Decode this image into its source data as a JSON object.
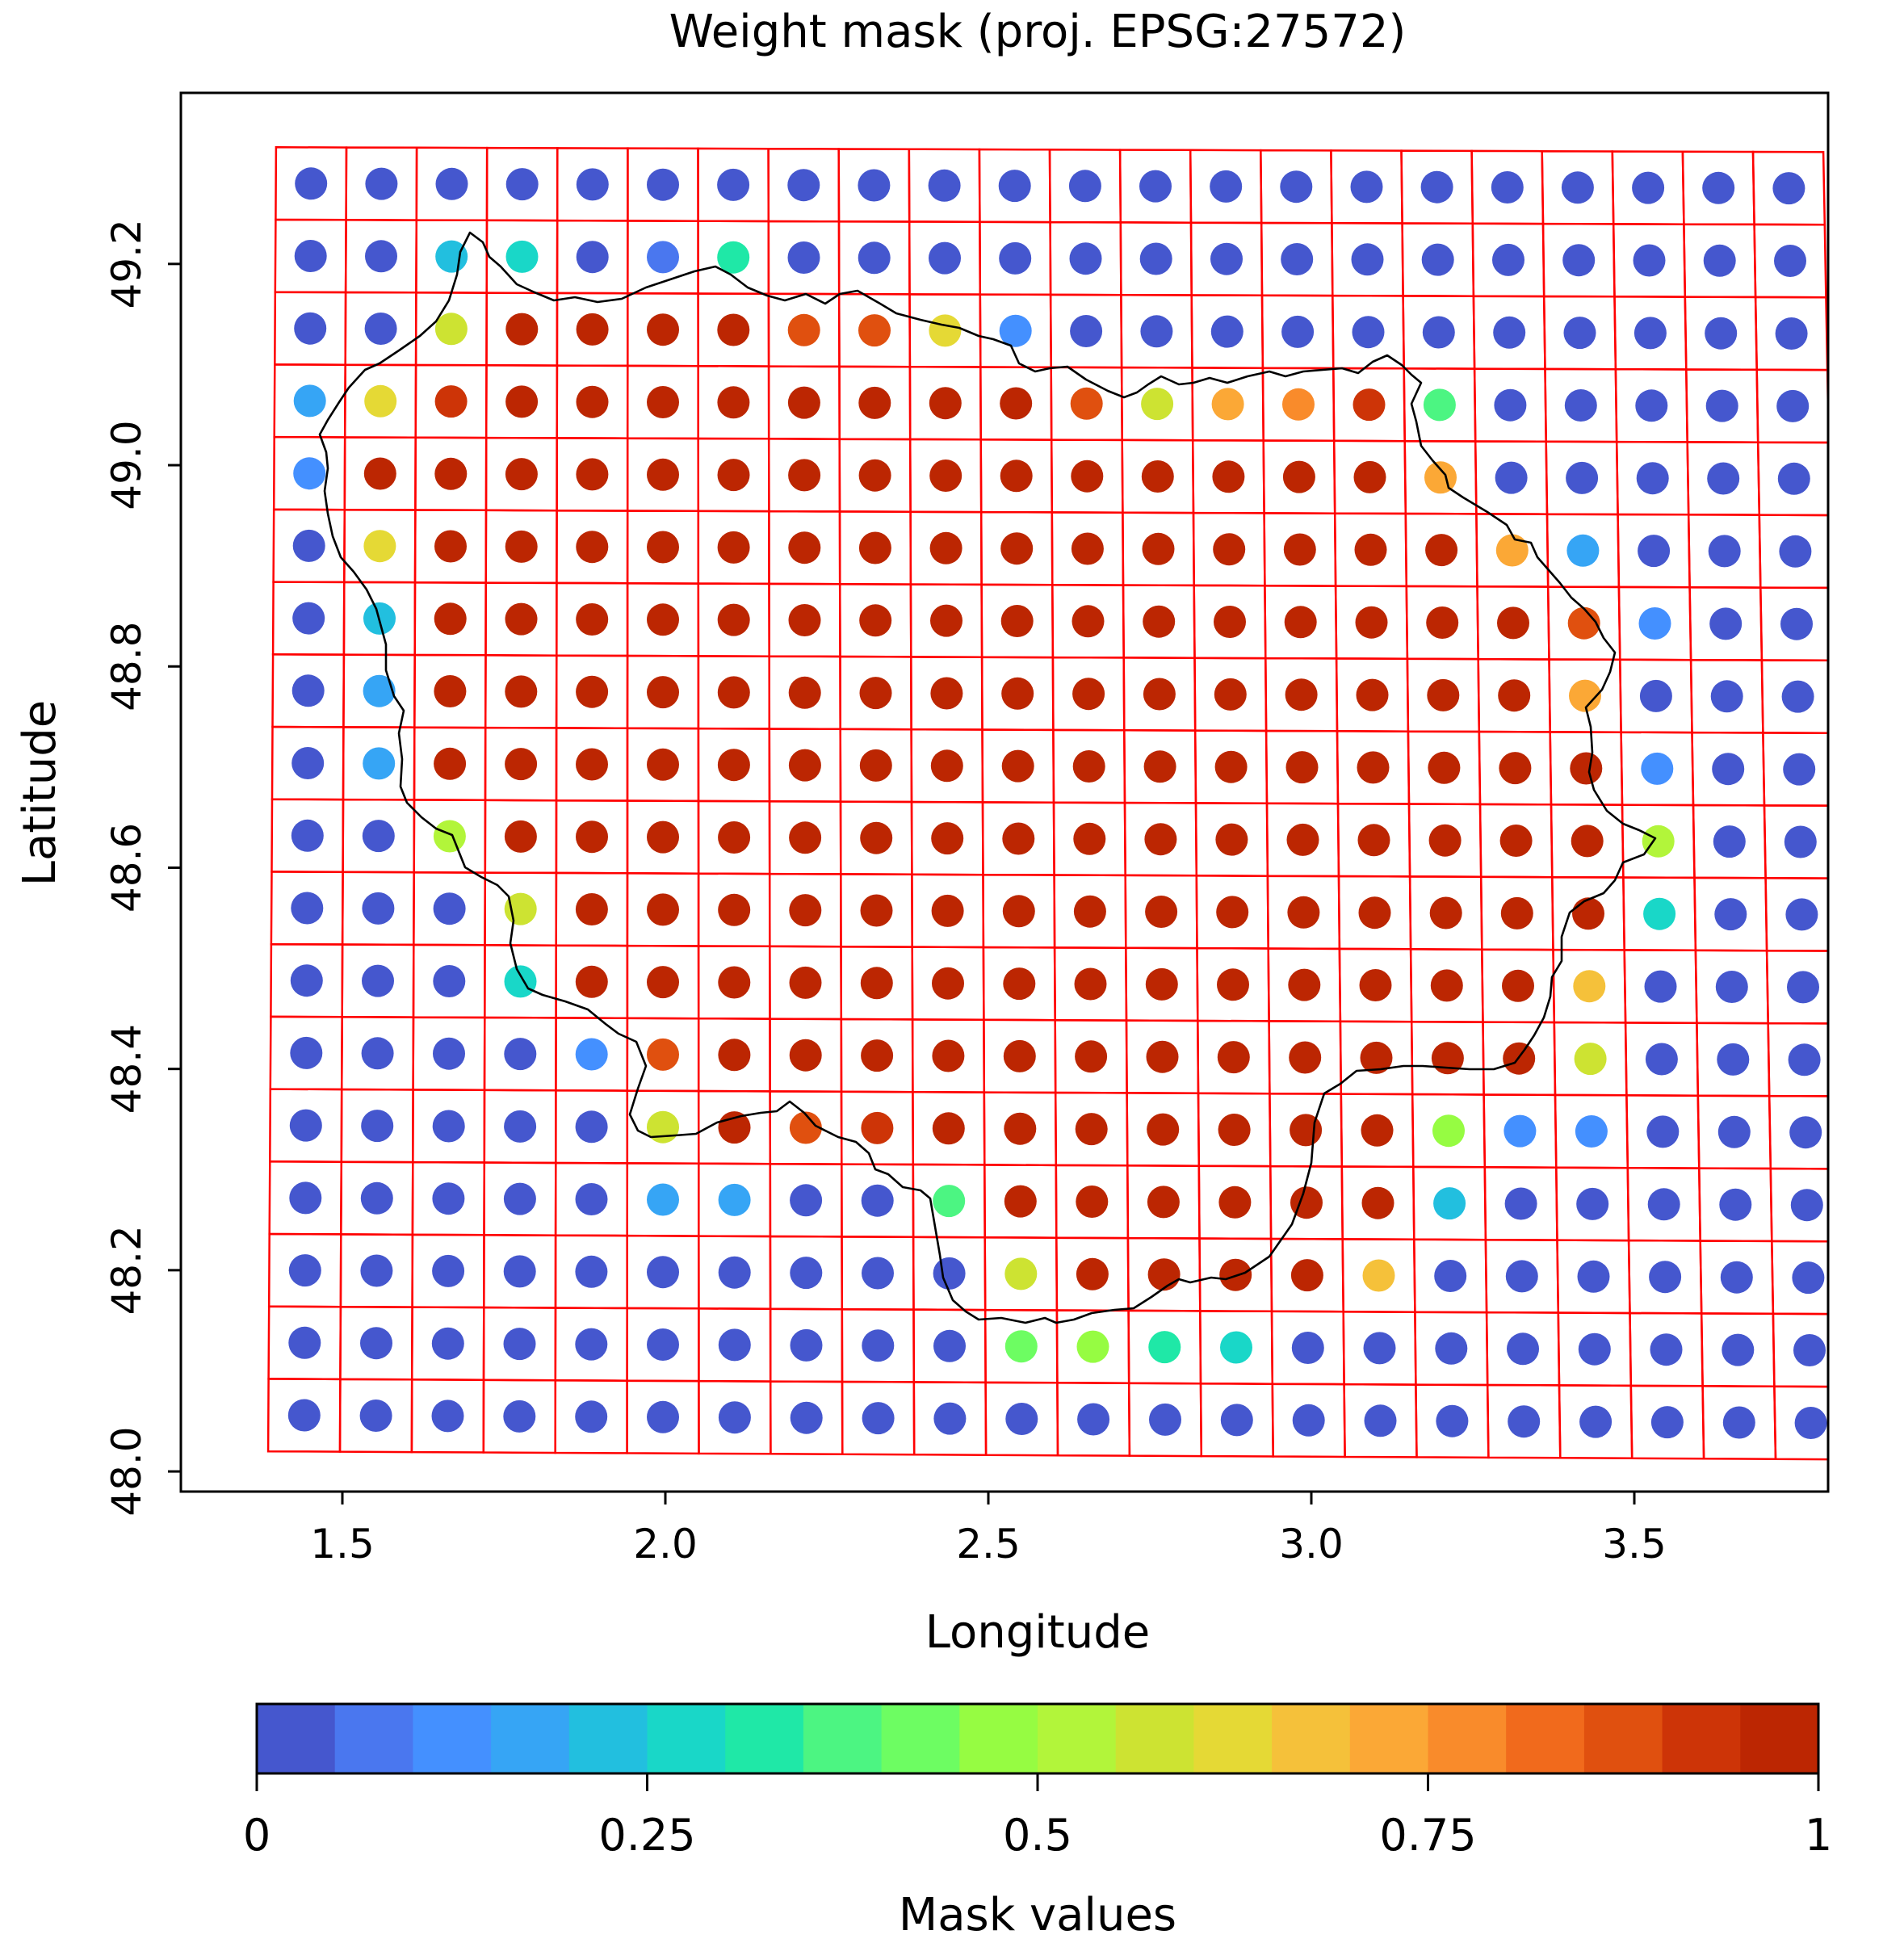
{
  "chart_data": {
    "type": "heatmap",
    "title": "Weight mask (proj. EPSG:27572)",
    "xlabel": "Longitude",
    "ylabel": "Latitude",
    "xlim": [
      1.25,
      3.8
    ],
    "ylim": [
      47.98,
      49.37
    ],
    "xticks": [
      "1.5",
      "2.0",
      "2.5",
      "3.0",
      "3.5"
    ],
    "xtick_values": [
      1.5,
      2.0,
      2.5,
      3.0,
      3.5
    ],
    "yticks": [
      "48.0",
      "48.2",
      "48.4",
      "48.6",
      "48.8",
      "49.0",
      "49.2"
    ],
    "ytick_values": [
      48.0,
      48.2,
      48.4,
      48.6,
      48.8,
      49.0,
      49.2
    ],
    "grid_columns": 22,
    "grid_rows": 18,
    "lon_first": 1.44,
    "lon_step": 0.11,
    "lat_first": 49.28,
    "lat_step": -0.072,
    "mask_values": [
      [
        0,
        0,
        0,
        0,
        0,
        0,
        0,
        0,
        0,
        0,
        0,
        0,
        0,
        0,
        0,
        0,
        0,
        0,
        0,
        0,
        0,
        0
      ],
      [
        0,
        0,
        0.22,
        0.28,
        0,
        0.08,
        0.32,
        0,
        0,
        0,
        0,
        0,
        0,
        0,
        0,
        0,
        0,
        0,
        0,
        0,
        0,
        0
      ],
      [
        0,
        0,
        0.55,
        0.97,
        0.97,
        0.97,
        0.97,
        0.88,
        0.85,
        0.62,
        0.12,
        0,
        0,
        0,
        0,
        0,
        0,
        0,
        0,
        0,
        0,
        0
      ],
      [
        0.15,
        0.62,
        0.92,
        0.97,
        0.97,
        0.97,
        0.97,
        0.97,
        0.97,
        0.97,
        0.97,
        0.85,
        0.58,
        0.72,
        0.78,
        0.92,
        0.38,
        0,
        0,
        0,
        0,
        0
      ],
      [
        0.12,
        0.97,
        0.97,
        0.97,
        0.97,
        0.97,
        0.97,
        0.97,
        0.97,
        0.97,
        0.97,
        0.97,
        0.97,
        0.97,
        0.97,
        0.97,
        0.73,
        0,
        0,
        0,
        0,
        0
      ],
      [
        0,
        0.63,
        0.97,
        0.97,
        0.97,
        0.97,
        0.97,
        0.97,
        0.97,
        0.97,
        0.97,
        0.97,
        0.97,
        0.97,
        0.97,
        0.97,
        0.97,
        0.72,
        0.15,
        0,
        0,
        0
      ],
      [
        0,
        0.22,
        0.97,
        0.97,
        0.97,
        0.97,
        0.97,
        0.97,
        0.97,
        0.97,
        0.97,
        0.97,
        0.97,
        0.97,
        0.97,
        0.97,
        0.97,
        0.97,
        0.85,
        0.12,
        0,
        0
      ],
      [
        0,
        0.18,
        0.97,
        0.97,
        0.97,
        0.97,
        0.97,
        0.97,
        0.97,
        0.97,
        0.97,
        0.97,
        0.97,
        0.97,
        0.97,
        0.97,
        0.97,
        0.97,
        0.72,
        0,
        0,
        0
      ],
      [
        0,
        0.15,
        0.97,
        0.97,
        0.97,
        0.97,
        0.97,
        0.97,
        0.97,
        0.97,
        0.97,
        0.97,
        0.97,
        0.97,
        0.97,
        0.97,
        0.97,
        0.97,
        0.97,
        0.12,
        0,
        0
      ],
      [
        0,
        0,
        0.53,
        0.97,
        0.97,
        0.97,
        0.97,
        0.97,
        0.97,
        0.97,
        0.97,
        0.97,
        0.97,
        0.97,
        0.97,
        0.97,
        0.97,
        0.97,
        0.97,
        0.53,
        0,
        0
      ],
      [
        0,
        0,
        0,
        0.58,
        0.97,
        0.97,
        0.97,
        0.97,
        0.97,
        0.97,
        0.97,
        0.97,
        0.97,
        0.97,
        0.97,
        0.97,
        0.97,
        0.97,
        0.97,
        0.28,
        0,
        0
      ],
      [
        0,
        0,
        0,
        0.28,
        0.97,
        0.97,
        0.97,
        0.97,
        0.97,
        0.97,
        0.97,
        0.97,
        0.97,
        0.97,
        0.97,
        0.97,
        0.97,
        0.97,
        0.68,
        0,
        0,
        0
      ],
      [
        0,
        0,
        0,
        0,
        0.12,
        0.85,
        0.97,
        0.97,
        0.97,
        0.97,
        0.97,
        0.97,
        0.97,
        0.97,
        0.97,
        0.97,
        0.97,
        0.97,
        0.55,
        0,
        0,
        0
      ],
      [
        0,
        0,
        0,
        0,
        0,
        0.57,
        0.97,
        0.85,
        0.92,
        0.97,
        0.97,
        0.97,
        0.97,
        0.97,
        0.97,
        0.97,
        0.48,
        0.12,
        0.12,
        0,
        0,
        0
      ],
      [
        0,
        0,
        0,
        0,
        0,
        0.18,
        0.15,
        0,
        0,
        0.38,
        0.97,
        0.97,
        0.97,
        0.97,
        0.97,
        0.97,
        0.22,
        0,
        0,
        0,
        0,
        0
      ],
      [
        0,
        0,
        0,
        0,
        0,
        0,
        0,
        0,
        0,
        0,
        0.58,
        0.97,
        0.97,
        0.97,
        0.97,
        0.68,
        0,
        0,
        0,
        0,
        0,
        0
      ],
      [
        0,
        0,
        0,
        0,
        0,
        0,
        0,
        0,
        0,
        0,
        0.42,
        0.45,
        0.3,
        0.28,
        0,
        0,
        0,
        0,
        0,
        0,
        0,
        0
      ],
      [
        0,
        0,
        0,
        0,
        0,
        0,
        0,
        0,
        0,
        0,
        0,
        0,
        0,
        0,
        0,
        0,
        0,
        0,
        0,
        0,
        0,
        0
      ]
    ],
    "colorbar": {
      "label": "Mask values",
      "ticks": [
        "0",
        "0.25",
        "0.5",
        "0.75",
        "1"
      ],
      "tick_values": [
        0,
        0.25,
        0.5,
        0.75,
        1
      ],
      "range": [
        0,
        1
      ],
      "levels": 20,
      "colors": [
        "#4557ce",
        "#4a77ef",
        "#4490ff",
        "#36a5f5",
        "#22bfdf",
        "#19d7c8",
        "#1fe8a7",
        "#4cf582",
        "#6dfd62",
        "#96fc42",
        "#b2f53a",
        "#cde332",
        "#e5d935",
        "#f5c13a",
        "#fba836",
        "#f98b2b",
        "#f16a1c",
        "#e0500f",
        "#cd3407",
        "#bc2602"
      ]
    },
    "boundary_color": "#000000",
    "grid_line_color": "#ff0000",
    "grid": false
  }
}
